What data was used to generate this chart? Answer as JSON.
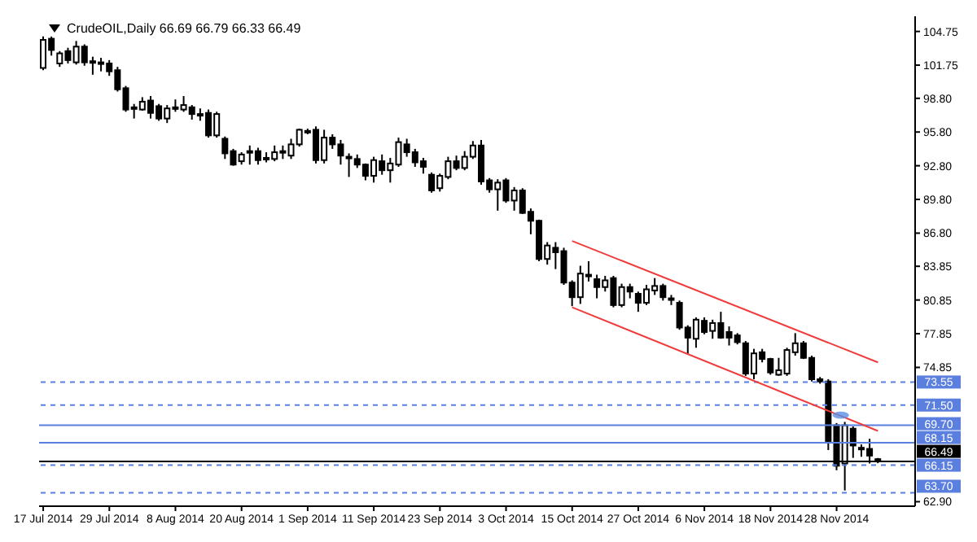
{
  "chart_data": {
    "type": "candlestick",
    "title": "CrudeOIL,Daily  66.69 66.79 66.33 66.49",
    "categories": [
      "17 Jul 2014",
      null,
      null,
      null,
      null,
      null,
      null,
      null,
      "29 Jul 2014",
      null,
      null,
      null,
      null,
      null,
      null,
      null,
      "8 Aug 2014",
      null,
      null,
      null,
      null,
      null,
      null,
      null,
      "20 Aug 2014",
      null,
      null,
      null,
      null,
      null,
      null,
      null,
      "1 Sep 2014",
      null,
      null,
      null,
      null,
      null,
      null,
      null,
      "11 Sep 2014",
      null,
      null,
      null,
      null,
      null,
      null,
      null,
      "23 Sep 2014",
      null,
      null,
      null,
      null,
      null,
      null,
      null,
      "3 Oct 2014",
      null,
      null,
      null,
      null,
      null,
      null,
      null,
      "15 Oct 2014",
      null,
      null,
      null,
      null,
      null,
      null,
      null,
      "27 Oct 2014",
      null,
      null,
      null,
      null,
      null,
      null,
      null,
      "6 Nov 2014",
      null,
      null,
      null,
      null,
      null,
      null,
      null,
      "18 Nov 2014",
      null,
      null,
      null,
      null,
      null,
      null,
      null,
      "28 Nov 2014",
      null,
      null,
      null,
      null,
      null
    ],
    "ohlc": [
      [
        101.5,
        104.3,
        101.3,
        104.0
      ],
      [
        104.1,
        104.3,
        102.6,
        103.1
      ],
      [
        101.9,
        103.0,
        101.6,
        102.8
      ],
      [
        103.0,
        103.3,
        101.9,
        102.2
      ],
      [
        102.0,
        103.9,
        101.8,
        103.4
      ],
      [
        103.4,
        103.6,
        101.7,
        102.0
      ],
      [
        102.1,
        102.5,
        100.9,
        102.0
      ],
      [
        102.0,
        102.4,
        101.2,
        101.9
      ],
      [
        101.9,
        102.2,
        100.8,
        101.2
      ],
      [
        101.3,
        101.6,
        99.4,
        99.6
      ],
      [
        99.7,
        99.9,
        97.6,
        97.8
      ],
      [
        97.9,
        98.3,
        97.0,
        98.0
      ],
      [
        97.8,
        98.9,
        97.7,
        98.5
      ],
      [
        98.6,
        99.0,
        97.0,
        97.5
      ],
      [
        98.1,
        98.3,
        96.8,
        97.0
      ],
      [
        97.0,
        98.2,
        96.6,
        97.9
      ],
      [
        98.0,
        98.7,
        97.6,
        98.0
      ],
      [
        97.8,
        99.0,
        97.6,
        98.2
      ],
      [
        98.0,
        98.2,
        96.9,
        97.4
      ],
      [
        97.4,
        97.9,
        96.8,
        97.3
      ],
      [
        97.5,
        97.8,
        95.3,
        95.5
      ],
      [
        95.5,
        97.6,
        95.3,
        97.4
      ],
      [
        95.2,
        95.4,
        93.4,
        93.9
      ],
      [
        94.1,
        94.3,
        92.8,
        92.9
      ],
      [
        93.2,
        94.0,
        92.9,
        93.8
      ],
      [
        94.1,
        94.6,
        92.9,
        94.0
      ],
      [
        94.1,
        94.4,
        92.9,
        93.3
      ],
      [
        93.5,
        94.0,
        93.1,
        93.5
      ],
      [
        93.4,
        94.6,
        93.2,
        94.0
      ],
      [
        94.0,
        94.6,
        93.4,
        94.1
      ],
      [
        93.7,
        95.2,
        93.4,
        94.7
      ],
      [
        94.7,
        96.1,
        94.5,
        96.0
      ],
      [
        95.9,
        96.1,
        95.6,
        95.9
      ],
      [
        96.0,
        96.3,
        93.0,
        93.3
      ],
      [
        93.3,
        96.0,
        93.0,
        95.3
      ],
      [
        95.3,
        95.6,
        94.3,
        94.7
      ],
      [
        94.7,
        95.1,
        92.9,
        93.7
      ],
      [
        93.6,
        93.9,
        91.8,
        93.6
      ],
      [
        93.4,
        93.8,
        92.6,
        92.9
      ],
      [
        92.9,
        93.0,
        91.5,
        91.9
      ],
      [
        91.9,
        93.6,
        91.3,
        93.3
      ],
      [
        93.2,
        93.8,
        92.0,
        92.4
      ],
      [
        92.4,
        93.5,
        91.3,
        93.0
      ],
      [
        92.9,
        95.3,
        92.7,
        94.9
      ],
      [
        94.7,
        95.2,
        93.6,
        94.0
      ],
      [
        94.0,
        94.3,
        92.7,
        93.1
      ],
      [
        93.2,
        93.5,
        92.1,
        92.7
      ],
      [
        92.0,
        92.2,
        90.4,
        90.6
      ],
      [
        90.8,
        92.1,
        90.5,
        91.9
      ],
      [
        91.8,
        93.6,
        91.6,
        93.2
      ],
      [
        93.2,
        93.7,
        92.4,
        92.6
      ],
      [
        92.6,
        94.1,
        92.4,
        93.6
      ],
      [
        93.6,
        95.0,
        93.4,
        94.6
      ],
      [
        94.6,
        95.1,
        91.1,
        91.4
      ],
      [
        91.5,
        91.7,
        90.4,
        90.7
      ],
      [
        90.7,
        91.6,
        88.8,
        91.3
      ],
      [
        91.5,
        91.7,
        89.5,
        89.7
      ],
      [
        89.7,
        90.9,
        88.8,
        90.6
      ],
      [
        90.6,
        90.8,
        88.5,
        88.6
      ],
      [
        88.7,
        89.0,
        86.7,
        87.9
      ],
      [
        87.9,
        88.0,
        84.3,
        84.5
      ],
      [
        84.5,
        86.0,
        84.0,
        85.7
      ],
      [
        85.5,
        86.0,
        83.6,
        85.1
      ],
      [
        85.2,
        85.5,
        82.2,
        82.4
      ],
      [
        82.4,
        82.6,
        80.3,
        81.1
      ],
      [
        81.1,
        83.9,
        80.5,
        83.2
      ],
      [
        83.1,
        84.3,
        82.5,
        83.1
      ],
      [
        82.7,
        83.1,
        81.0,
        82.0
      ],
      [
        82.0,
        83.0,
        81.6,
        82.6
      ],
      [
        82.8,
        83.0,
        80.2,
        80.4
      ],
      [
        80.4,
        82.3,
        80.2,
        82.0
      ],
      [
        82.0,
        82.3,
        81.0,
        81.6
      ],
      [
        81.4,
        81.6,
        79.8,
        80.6
      ],
      [
        80.6,
        82.2,
        80.4,
        81.8
      ],
      [
        81.7,
        82.8,
        81.3,
        82.1
      ],
      [
        82.1,
        82.3,
        80.8,
        81.1
      ],
      [
        81.0,
        81.3,
        80.4,
        81.0
      ],
      [
        80.6,
        80.8,
        78.2,
        78.4
      ],
      [
        78.4,
        78.6,
        76.0,
        77.5
      ],
      [
        77.4,
        79.3,
        76.6,
        79.1
      ],
      [
        79.0,
        79.3,
        77.8,
        78.0
      ],
      [
        78.1,
        79.1,
        77.4,
        78.8
      ],
      [
        78.8,
        79.8,
        77.4,
        77.5
      ],
      [
        78.0,
        78.5,
        76.8,
        77.5
      ],
      [
        77.7,
        77.9,
        76.9,
        77.1
      ],
      [
        77.0,
        77.2,
        74.1,
        74.3
      ],
      [
        74.3,
        76.5,
        73.8,
        76.1
      ],
      [
        76.2,
        76.5,
        75.3,
        75.6
      ],
      [
        75.6,
        75.7,
        74.2,
        74.4
      ],
      [
        74.2,
        75.7,
        74.1,
        74.6
      ],
      [
        74.3,
        76.6,
        74.1,
        76.4
      ],
      [
        76.2,
        77.9,
        75.9,
        77.0
      ],
      [
        77.0,
        77.2,
        75.6,
        75.7
      ],
      [
        75.7,
        75.9,
        73.6,
        73.8
      ],
      [
        73.8,
        74.0,
        73.4,
        73.6
      ],
      [
        73.6,
        73.8,
        67.5,
        68.3
      ],
      [
        69.7,
        69.9,
        65.7,
        66.1
      ],
      [
        66.3,
        70.0,
        63.9,
        69.7
      ],
      [
        69.4,
        69.6,
        66.8,
        67.9
      ],
      [
        67.7,
        68.0,
        66.9,
        67.6
      ],
      [
        67.6,
        68.5,
        66.3,
        67.0
      ],
      [
        66.69,
        66.79,
        66.33,
        66.49
      ]
    ],
    "series": [
      {
        "type": "line",
        "color": "#f03c3c",
        "values": [
          null,
          null,
          null,
          null,
          null,
          null,
          null,
          null,
          null,
          null,
          null,
          null,
          null,
          null,
          null,
          null,
          null,
          null,
          null,
          null,
          null,
          null,
          null,
          null,
          null,
          null,
          null,
          null,
          null,
          null,
          null,
          null,
          null,
          null,
          null,
          null,
          null,
          null,
          null,
          null,
          null,
          null,
          null,
          null,
          null,
          null,
          null,
          null,
          null,
          null,
          null,
          null,
          null,
          null,
          null,
          null,
          null,
          null,
          null,
          null,
          null,
          null,
          null,
          null,
          86.1,
          null,
          null,
          null,
          null,
          null,
          null,
          null,
          null,
          null,
          null,
          null,
          null,
          null,
          null,
          null,
          null,
          null,
          null,
          null,
          null,
          null,
          null,
          null,
          null,
          null,
          null,
          null,
          null,
          null,
          null,
          null,
          null,
          null,
          null,
          null,
          null,
          75.3
        ]
      },
      {
        "type": "line",
        "color": "#f03c3c",
        "values": [
          null,
          null,
          null,
          null,
          null,
          null,
          null,
          null,
          null,
          null,
          null,
          null,
          null,
          null,
          null,
          null,
          null,
          null,
          null,
          null,
          null,
          null,
          null,
          null,
          null,
          null,
          null,
          null,
          null,
          null,
          null,
          null,
          null,
          null,
          null,
          null,
          null,
          null,
          null,
          null,
          null,
          null,
          null,
          null,
          null,
          null,
          null,
          null,
          null,
          null,
          null,
          null,
          null,
          null,
          null,
          null,
          null,
          null,
          null,
          null,
          null,
          null,
          null,
          null,
          80.2,
          null,
          null,
          null,
          null,
          null,
          null,
          null,
          null,
          null,
          null,
          null,
          null,
          null,
          null,
          null,
          null,
          null,
          null,
          null,
          null,
          null,
          null,
          null,
          null,
          null,
          null,
          null,
          null,
          null,
          null,
          null,
          null,
          null,
          null,
          null,
          null,
          69.2
        ]
      }
    ],
    "ylim": [
      62.5,
      106.1
    ],
    "yticks": [
      {
        "value": 62.9,
        "label": "62.90"
      },
      {
        "value": 74.85,
        "label": "74.85"
      },
      {
        "value": 77.85,
        "label": "77.85"
      },
      {
        "value": 80.85,
        "label": "80.85"
      },
      {
        "value": 83.85,
        "label": "83.85"
      },
      {
        "value": 86.8,
        "label": "86.80"
      },
      {
        "value": 89.8,
        "label": "89.80"
      },
      {
        "value": 92.8,
        "label": "92.80"
      },
      {
        "value": 95.8,
        "label": "95.80"
      },
      {
        "value": 98.8,
        "label": "98.80"
      },
      {
        "value": 101.75,
        "label": "101.75"
      },
      {
        "value": 104.75,
        "label": "104.75"
      }
    ],
    "ref_lines": [
      {
        "axis": "y",
        "value": 73.55,
        "label": "73.55",
        "color": "#5b7fde",
        "line_style": "dashed"
      },
      {
        "axis": "y",
        "value": 71.5,
        "label": "71.50",
        "color": "#5b7fde",
        "line_style": "dashed"
      },
      {
        "axis": "y",
        "value": 69.7,
        "label": "69.70",
        "color": "#5b7fde",
        "line_style": "solid"
      },
      {
        "axis": "y",
        "value": 68.15,
        "label": "68.15",
        "color": "#5b7fde",
        "line_style": "solid"
      },
      {
        "axis": "y",
        "value": 66.49,
        "label": "66.49",
        "color": "#000000",
        "line_style": "solid"
      },
      {
        "axis": "y",
        "value": 66.15,
        "label": "66.15",
        "color": "#5b7fde",
        "line_style": "dashed"
      },
      {
        "axis": "y",
        "value": 63.7,
        "label": "63.70",
        "color": "#5b7fde",
        "line_style": "dashed"
      }
    ],
    "grid": false,
    "legend": false
  }
}
